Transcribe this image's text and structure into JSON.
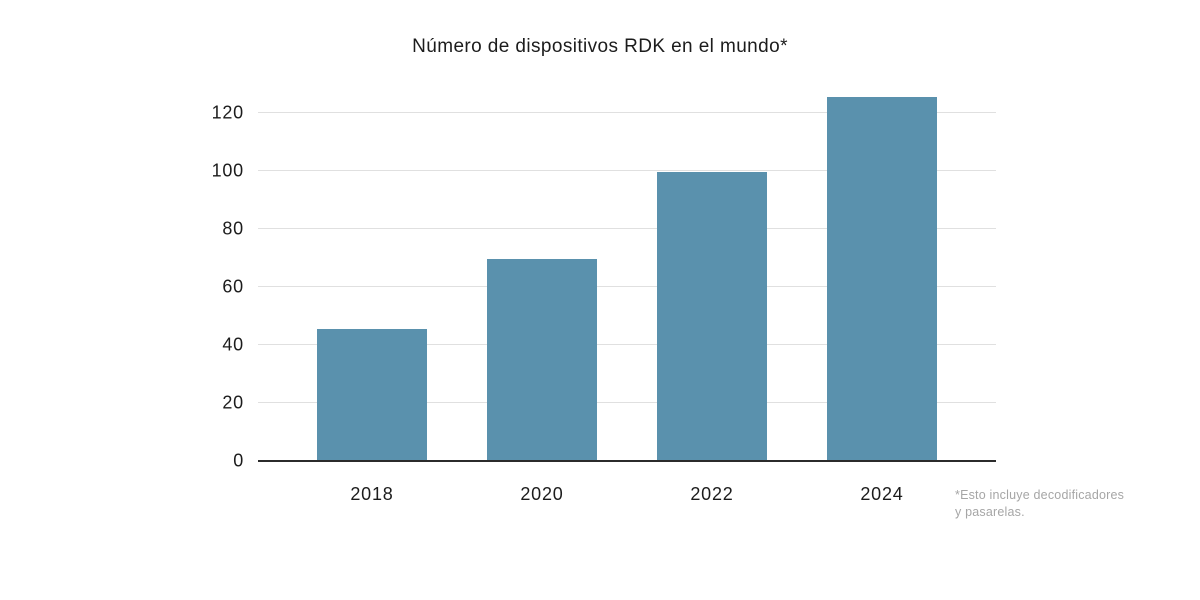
{
  "chart_data": {
    "type": "bar",
    "title": "Número de dispositivos RDK en el mundo*",
    "categories": [
      "2018",
      "2020",
      "2022",
      "2024"
    ],
    "values": [
      46,
      70,
      100,
      126
    ],
    "yticks": [
      0,
      20,
      40,
      60,
      80,
      100,
      120
    ],
    "ylim": [
      0,
      130
    ],
    "xlabel": "",
    "ylabel": "",
    "grid": "horizontal",
    "legend": "none",
    "footnote_lines": [
      "*Esto incluye decodificadores",
      "y pasarelas."
    ]
  },
  "colors": {
    "bar": "#5a91ad",
    "gridline": "#e0e0e0",
    "axis_line": "#2b2b2b",
    "text": "#1c1c1c",
    "footnote_text": "#a6a6a6",
    "background": "#ffffff"
  }
}
